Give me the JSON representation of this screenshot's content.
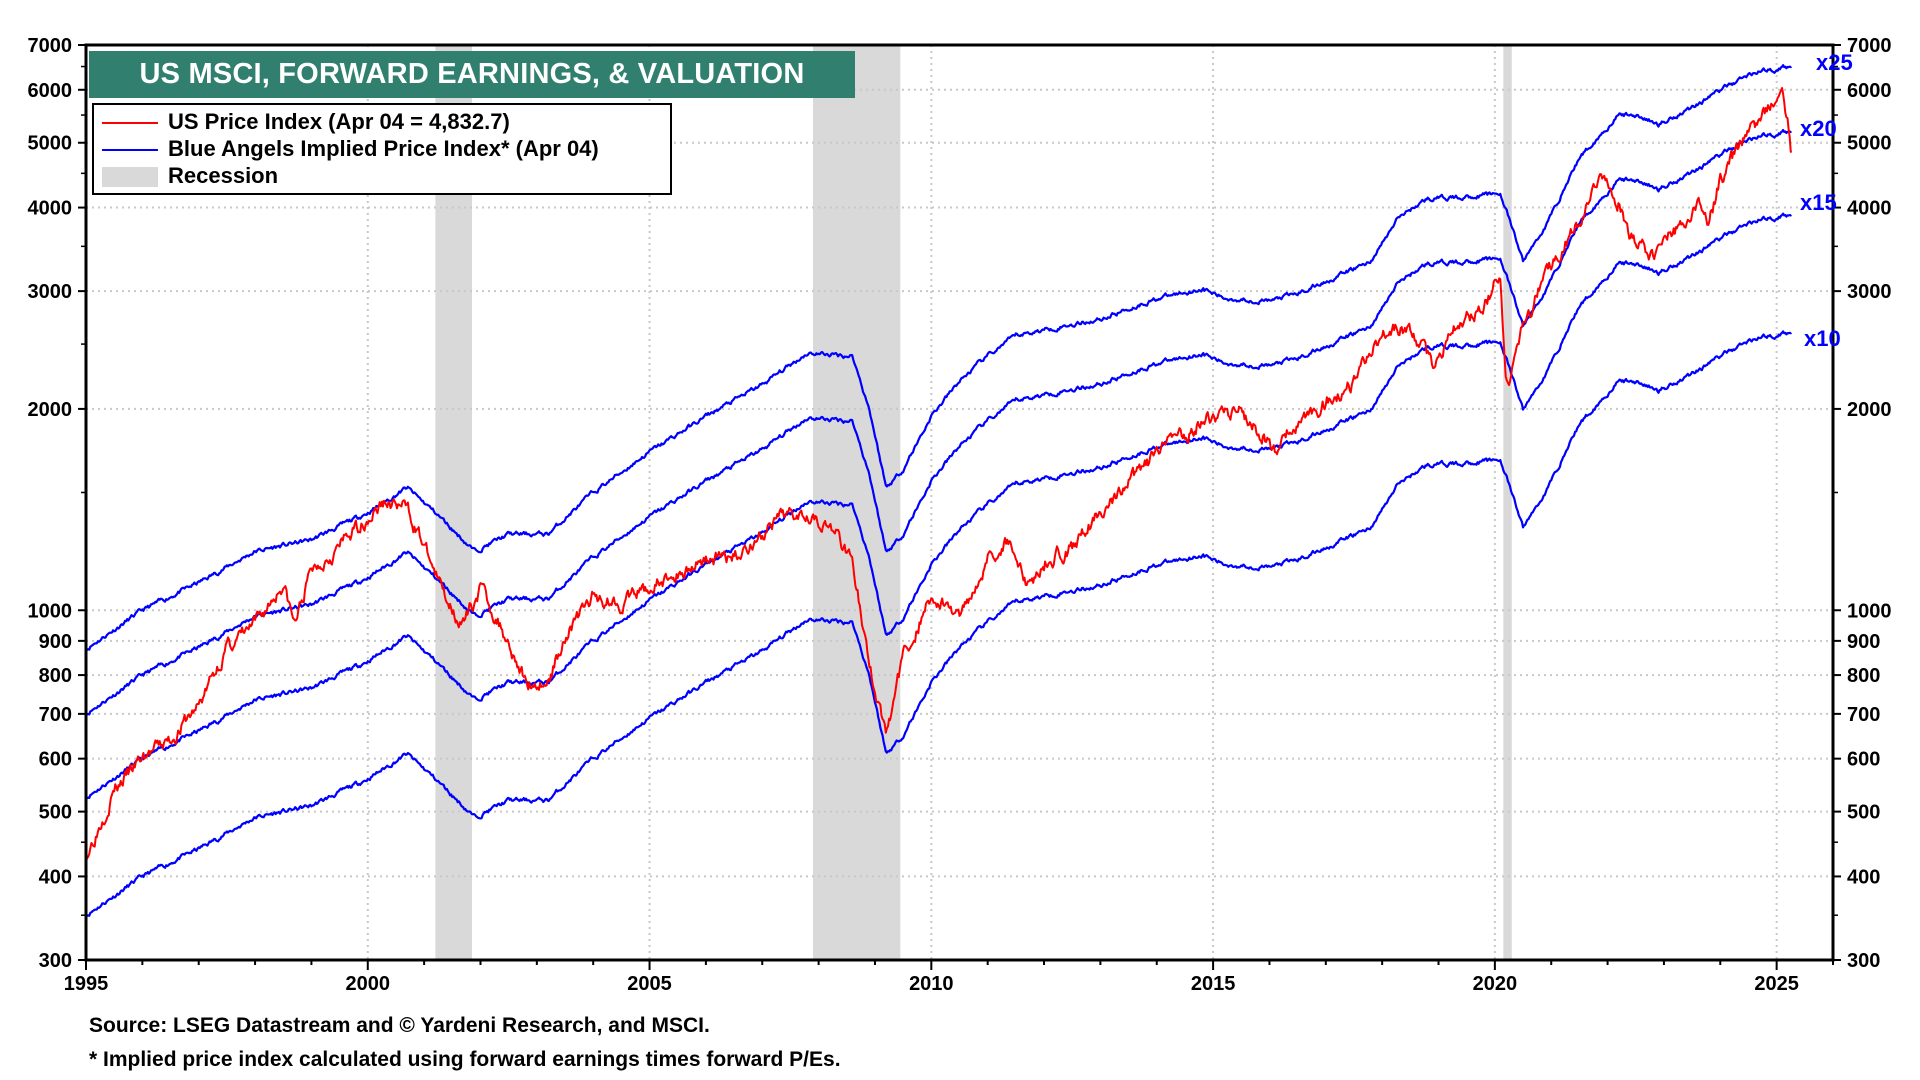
{
  "chart_data": {
    "type": "line",
    "title": "US MSCI, FORWARD EARNINGS, & VALUATION",
    "y_scale": "log",
    "xlim": [
      1995,
      2026
    ],
    "ylim": [
      300,
      7000
    ],
    "grid": true,
    "legend_placement": "top-left",
    "x_ticks": [
      "1995",
      "2000",
      "2005",
      "2010",
      "2015",
      "2020",
      "2025"
    ],
    "y_ticks": [
      300,
      400,
      500,
      600,
      700,
      800,
      900,
      1000,
      2000,
      3000,
      4000,
      5000,
      6000,
      7000
    ],
    "legend": [
      {
        "label": "US Price Index (Apr 04 = 4,832.7)",
        "color": "#ff0000"
      },
      {
        "label": "Blue Angels Implied Price Index* (Apr 04)",
        "color": "#0000ff"
      },
      {
        "label": "Recession",
        "color": "#d9d9d9"
      }
    ],
    "recessions": [
      [
        2001.2,
        2001.85
      ],
      [
        2007.9,
        2009.45
      ],
      [
        2020.15,
        2020.3
      ]
    ],
    "price_index": {
      "name": "US Price Index",
      "color": "#ff0000",
      "x": [
        1995.0,
        1995.5,
        1996.0,
        1996.5,
        1997.0,
        1997.5,
        1998.0,
        1998.5,
        1998.7,
        1999.0,
        1999.5,
        2000.0,
        2000.3,
        2000.7,
        2001.0,
        2001.3,
        2001.7,
        2002.0,
        2002.5,
        2002.8,
        2003.2,
        2003.5,
        2004.0,
        2004.5,
        2005.0,
        2005.5,
        2006.0,
        2006.5,
        2007.0,
        2007.5,
        2007.8,
        2008.3,
        2008.6,
        2008.9,
        2009.2,
        2009.5,
        2010.0,
        2010.5,
        2011.0,
        2011.4,
        2011.7,
        2012.0,
        2012.5,
        2013.0,
        2013.5,
        2014.0,
        2014.5,
        2015.0,
        2015.5,
        2015.8,
        2016.1,
        2016.5,
        2017.0,
        2017.5,
        2018.0,
        2018.5,
        2018.9,
        2019.3,
        2019.8,
        2020.1,
        2020.2,
        2020.5,
        2021.0,
        2021.5,
        2021.9,
        2022.2,
        2022.5,
        2022.8,
        2023.2,
        2023.6,
        2023.8,
        2024.0,
        2024.5,
        2025.0,
        2025.1,
        2025.2,
        2025.26
      ],
      "y": [
        430,
        540,
        600,
        640,
        720,
        880,
        950,
        1100,
        950,
        1150,
        1250,
        1380,
        1450,
        1420,
        1250,
        1080,
        950,
        1080,
        900,
        780,
        780,
        920,
        1050,
        1030,
        1080,
        1130,
        1200,
        1200,
        1300,
        1400,
        1420,
        1300,
        1200,
        820,
        650,
        850,
        1050,
        980,
        1200,
        1280,
        1080,
        1180,
        1250,
        1400,
        1550,
        1700,
        1850,
        1950,
        1980,
        1850,
        1750,
        1900,
        2050,
        2200,
        2600,
        2650,
        2300,
        2650,
        2850,
        3200,
        2100,
        2650,
        3300,
        3800,
        4400,
        4100,
        3500,
        3400,
        3700,
        4000,
        3800,
        4400,
        5200,
        5750,
        5800,
        5300,
        4833
      ]
    },
    "implied_x10": {
      "name": "x10",
      "color": "#0000ff",
      "x": [
        1995.0,
        1996.0,
        1997.0,
        1998.0,
        1999.0,
        2000.0,
        2000.7,
        2001.2,
        2001.9,
        2002.5,
        2003.2,
        2004.0,
        2005.0,
        2006.0,
        2007.0,
        2007.8,
        2008.6,
        2008.9,
        2009.2,
        2009.5,
        2010.0,
        2010.5,
        2011.0,
        2011.5,
        2012.0,
        2013.0,
        2014.0,
        2014.8,
        2015.2,
        2016.0,
        2016.5,
        2017.0,
        2017.8,
        2018.3,
        2018.8,
        2019.5,
        2020.1,
        2020.5,
        2020.9,
        2021.5,
        2022.2,
        2022.5,
        2022.9,
        2023.5,
        2024.0,
        2024.6,
        2025.26
      ],
      "y": [
        350,
        400,
        440,
        490,
        510,
        560,
        610,
        560,
        490,
        520,
        520,
        600,
        690,
        780,
        870,
        970,
        960,
        800,
        610,
        650,
        780,
        880,
        960,
        1030,
        1050,
        1090,
        1170,
        1210,
        1170,
        1160,
        1190,
        1240,
        1330,
        1550,
        1650,
        1660,
        1680,
        1330,
        1500,
        1900,
        2200,
        2200,
        2130,
        2260,
        2400,
        2550,
        2600
      ]
    },
    "multiples": [
      10,
      15,
      20,
      25
    ],
    "band_labels": [
      "x10",
      "x15",
      "x20",
      "x25"
    ]
  },
  "footer": {
    "source": "Source: LSEG Datastream and © Yardeni Research, and MSCI.",
    "note": "* Implied price index calculated using forward earnings times forward P/Es."
  }
}
